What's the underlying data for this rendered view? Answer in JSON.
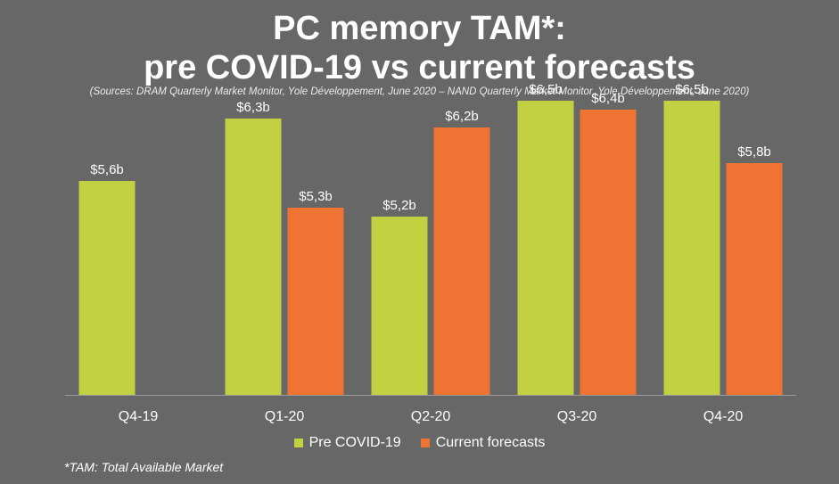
{
  "title_line1": "PC memory TAM*:",
  "title_line2": "pre COVID-19 vs current forecasts",
  "source": "(Sources: DRAM Quarterly Market Monitor, Yole Développement, June 2020 – NAND Quarterly Market Monitor, Yole Développement, June 2020)",
  "footnote": "*TAM: Total Available Market",
  "colors": {
    "background": "#676767",
    "pre_covid": "#c2d142",
    "current": "#ef7433",
    "axis": "#9a9a9a"
  },
  "chart_data": {
    "type": "bar",
    "categories": [
      "Q4-19",
      "Q1-20",
      "Q2-20",
      "Q3-20",
      "Q4-20"
    ],
    "series": [
      {
        "name": "Pre COVID-19",
        "values": [
          5.6,
          6.3,
          5.2,
          6.5,
          6.5
        ],
        "labels": [
          "$5,6b",
          "$6,3b",
          "$5,2b",
          "$6,5b",
          "$6,5b"
        ]
      },
      {
        "name": "Current forecasts",
        "values": [
          null,
          5.3,
          6.2,
          6.4,
          5.8
        ],
        "labels": [
          null,
          "$5,3b",
          "$6,2b",
          "$6,4b",
          "$5,8b"
        ]
      }
    ],
    "ylim": [
      3.2,
      6.7
    ],
    "grid": false,
    "legend": "bottom-center",
    "xlabel": "",
    "ylabel": ""
  }
}
